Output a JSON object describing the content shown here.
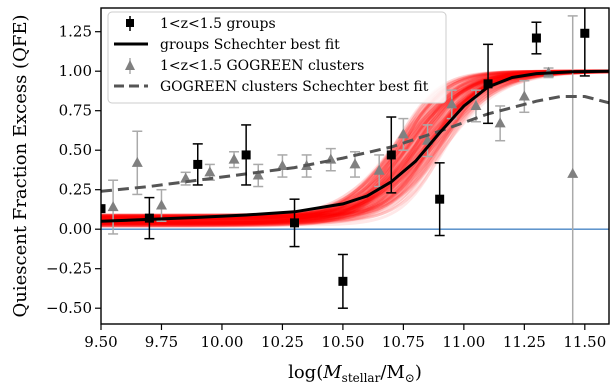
{
  "chart_data": {
    "type": "scatter",
    "xlabel_prefix": "log(",
    "xlabel_var": "M",
    "xlabel_sub": "stellar",
    "xlabel_sep": "/M",
    "xlabel_sun": "⊙",
    "xlabel_suffix": ")",
    "ylabel": "Quiescent Fraction Excess (QFE)",
    "xlim": [
      9.5,
      11.6
    ],
    "ylim": [
      -0.6,
      1.4
    ],
    "xticks": [
      "9.50",
      "9.75",
      "10.00",
      "10.25",
      "10.50",
      "10.75",
      "11.00",
      "11.25",
      "11.50"
    ],
    "yticks": [
      "−0.50",
      "−0.25",
      "0.00",
      "0.25",
      "0.50",
      "0.75",
      "1.00",
      "1.25"
    ],
    "xtick_values": [
      9.5,
      9.75,
      10.0,
      10.25,
      10.5,
      10.75,
      11.0,
      11.25,
      11.5
    ],
    "ytick_values": [
      -0.5,
      -0.25,
      0.0,
      0.25,
      0.5,
      0.75,
      1.0,
      1.25
    ],
    "legend_position": "upper-left",
    "zero_line": {
      "y": 0,
      "color": "#4a86c5"
    },
    "colors": {
      "groups": "#000000",
      "clusters": "#808080",
      "clusters_err": "#aaaaaa",
      "fit_ensemble": "#ff0000",
      "clusters_fit": "#555555"
    },
    "series": [
      {
        "name": "1<z<1.5 groups",
        "marker": "square",
        "points": [
          {
            "x": 9.5,
            "y": 0.13,
            "err": 0.0
          },
          {
            "x": 9.7,
            "y": 0.07,
            "err": 0.13
          },
          {
            "x": 9.9,
            "y": 0.41,
            "err": 0.13
          },
          {
            "x": 10.1,
            "y": 0.47,
            "err": 0.19
          },
          {
            "x": 10.3,
            "y": 0.04,
            "err": 0.15
          },
          {
            "x": 10.5,
            "y": -0.33,
            "err": 0.17
          },
          {
            "x": 10.7,
            "y": 0.47,
            "err": 0.24
          },
          {
            "x": 10.9,
            "y": 0.19,
            "err": 0.23
          },
          {
            "x": 11.1,
            "y": 0.92,
            "err": 0.25
          },
          {
            "x": 11.3,
            "y": 1.21,
            "err": 0.1
          },
          {
            "x": 11.5,
            "y": 1.24,
            "err": 0.27
          }
        ]
      },
      {
        "name": "groups Schechter best fit",
        "style": "solid",
        "points": [
          {
            "x": 9.5,
            "y": 0.05
          },
          {
            "x": 9.7,
            "y": 0.062
          },
          {
            "x": 9.9,
            "y": 0.075
          },
          {
            "x": 10.1,
            "y": 0.09
          },
          {
            "x": 10.3,
            "y": 0.11
          },
          {
            "x": 10.5,
            "y": 0.16
          },
          {
            "x": 10.6,
            "y": 0.21
          },
          {
            "x": 10.7,
            "y": 0.3
          },
          {
            "x": 10.8,
            "y": 0.43
          },
          {
            "x": 10.9,
            "y": 0.61
          },
          {
            "x": 11.0,
            "y": 0.78
          },
          {
            "x": 11.1,
            "y": 0.9
          },
          {
            "x": 11.2,
            "y": 0.96
          },
          {
            "x": 11.3,
            "y": 0.985
          },
          {
            "x": 11.45,
            "y": 0.997
          },
          {
            "x": 11.6,
            "y": 1.0
          }
        ]
      },
      {
        "name": "1<z<1.5 GOGREEN clusters",
        "marker": "triangle",
        "points": [
          {
            "x": 9.55,
            "y": 0.14,
            "err": 0.17
          },
          {
            "x": 9.65,
            "y": 0.42,
            "err": 0.2
          },
          {
            "x": 9.75,
            "y": 0.15,
            "err": 0.1
          },
          {
            "x": 9.85,
            "y": 0.32,
            "err": 0.04
          },
          {
            "x": 9.95,
            "y": 0.36,
            "err": 0.05
          },
          {
            "x": 10.05,
            "y": 0.44,
            "err": 0.05
          },
          {
            "x": 10.15,
            "y": 0.34,
            "err": 0.07
          },
          {
            "x": 10.25,
            "y": 0.4,
            "err": 0.07
          },
          {
            "x": 10.35,
            "y": 0.4,
            "err": 0.07
          },
          {
            "x": 10.45,
            "y": 0.44,
            "err": 0.07
          },
          {
            "x": 10.55,
            "y": 0.41,
            "err": 0.08
          },
          {
            "x": 10.65,
            "y": 0.37,
            "err": 0.1
          },
          {
            "x": 10.75,
            "y": 0.6,
            "err": 0.1
          },
          {
            "x": 10.85,
            "y": 0.56,
            "err": 0.1
          },
          {
            "x": 10.95,
            "y": 0.79,
            "err": 0.09
          },
          {
            "x": 11.05,
            "y": 0.78,
            "err": 0.1
          },
          {
            "x": 11.15,
            "y": 0.67,
            "err": 0.11
          },
          {
            "x": 11.25,
            "y": 0.84,
            "err": 0.1
          },
          {
            "x": 11.35,
            "y": 0.99,
            "err": 0.03
          },
          {
            "x": 11.45,
            "y": 0.35,
            "err": 1.0
          }
        ]
      },
      {
        "name": "GOGREEN clusters Schechter best fit",
        "style": "dashed",
        "points": [
          {
            "x": 9.5,
            "y": 0.24
          },
          {
            "x": 9.7,
            "y": 0.27
          },
          {
            "x": 9.9,
            "y": 0.31
          },
          {
            "x": 10.1,
            "y": 0.35
          },
          {
            "x": 10.3,
            "y": 0.39
          },
          {
            "x": 10.5,
            "y": 0.45
          },
          {
            "x": 10.7,
            "y": 0.52
          },
          {
            "x": 10.9,
            "y": 0.62
          },
          {
            "x": 11.1,
            "y": 0.73
          },
          {
            "x": 11.3,
            "y": 0.81
          },
          {
            "x": 11.4,
            "y": 0.84
          },
          {
            "x": 11.5,
            "y": 0.84
          },
          {
            "x": 11.6,
            "y": 0.8
          }
        ]
      }
    ]
  }
}
